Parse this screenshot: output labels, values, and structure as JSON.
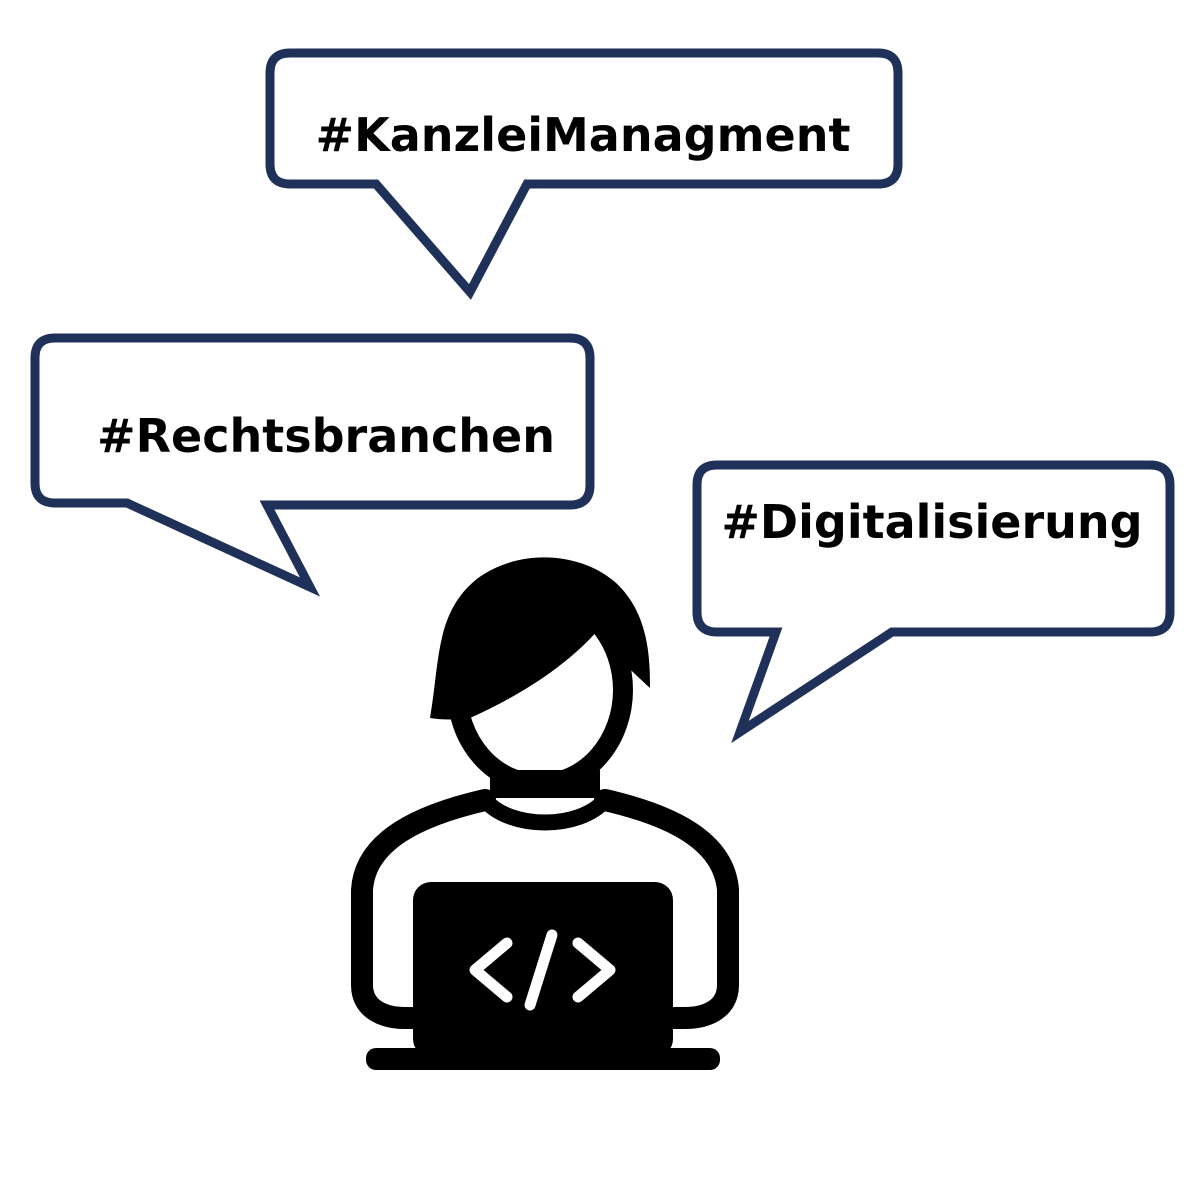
{
  "bubbles": {
    "top": {
      "label": "#KanzleiManagment"
    },
    "left": {
      "label": "#Rechtsbranchen"
    },
    "right": {
      "label": "#Digitalisierung"
    }
  },
  "figure": {
    "icon": "developer-at-laptop-icon",
    "laptop_icon": "code-brackets-icon"
  },
  "colors": {
    "bubble_outline": "#1f3159",
    "bubble_fill": "#ffffff",
    "text": "#000000",
    "figure": "#000000",
    "background": "#ffffff"
  }
}
